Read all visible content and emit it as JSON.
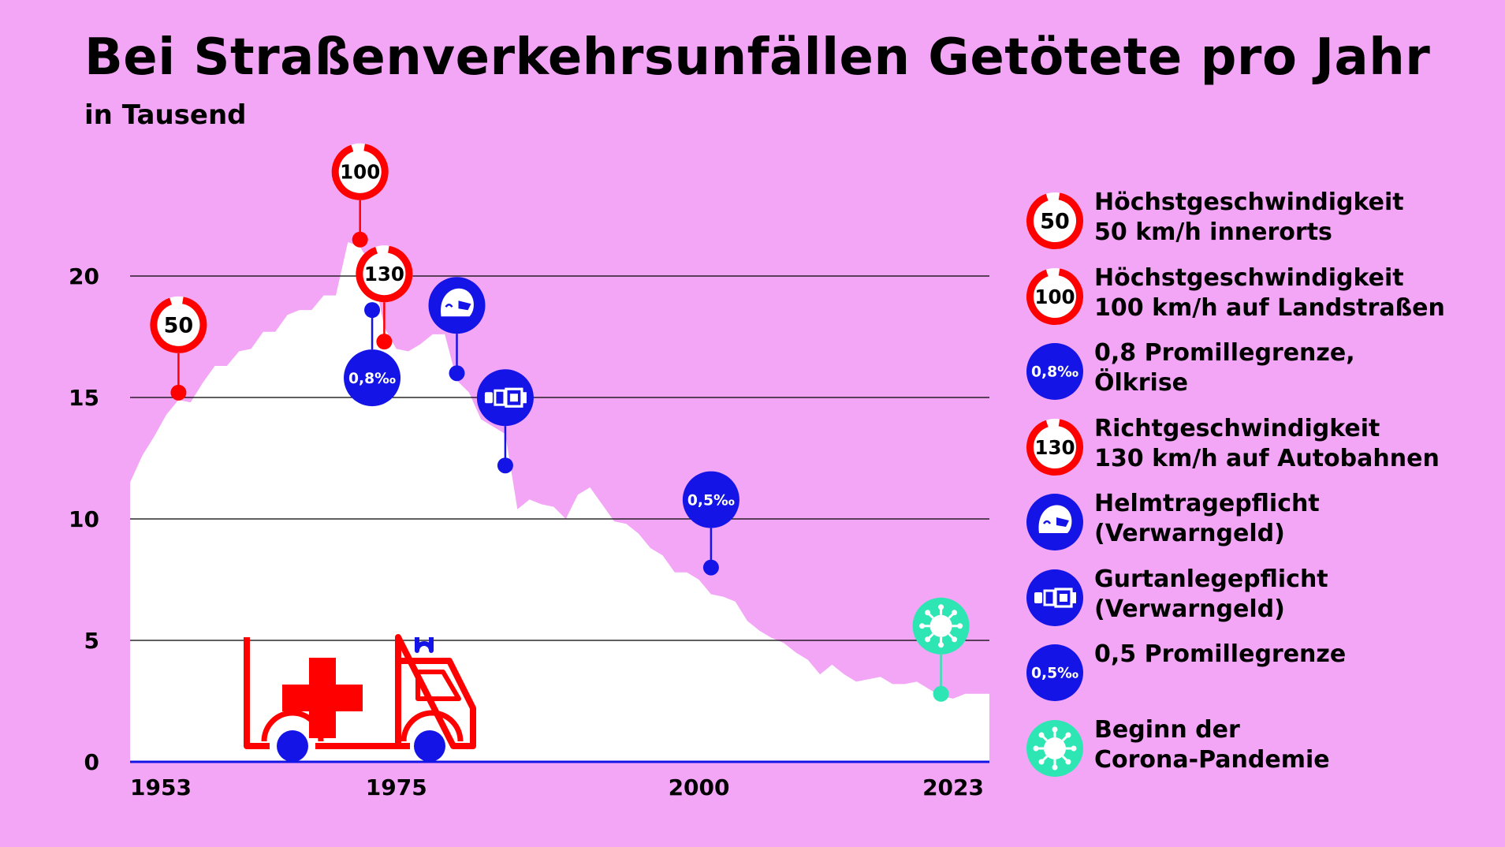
{
  "title": "Bei Straßenverkehrsunfällen Getötete pro Jahr",
  "subtitle": "in Tausend",
  "colors": {
    "background": "#f3a6f5",
    "area": "#ffffff",
    "red": "#ff0000",
    "blue": "#1414e6",
    "teal": "#2ee6b4",
    "baseline": "#1414e6",
    "grid": "#000000"
  },
  "chart_data": {
    "type": "area",
    "title": "Bei Straßenverkehrsunfällen Getötete pro Jahr",
    "subtitle": "in Tausend",
    "xlabel": "",
    "ylabel": "",
    "xlim": [
      1953,
      2024
    ],
    "ylim": [
      0,
      22
    ],
    "grid": true,
    "x_tick_labels": [
      "1953",
      "1975",
      "2000",
      "2023"
    ],
    "x_ticks": [
      1953,
      1975,
      2000,
      2023
    ],
    "y_ticks": [
      0,
      5,
      10,
      15,
      20
    ],
    "series": [
      {
        "x": [
          1953,
          1954,
          1955,
          1956,
          1957,
          1958,
          1959,
          1960,
          1961,
          1962,
          1963,
          1964,
          1965,
          1966,
          1967,
          1968,
          1969,
          1970,
          1971,
          1972,
          1973,
          1974,
          1975,
          1976,
          1977,
          1978,
          1979,
          1980,
          1981,
          1982,
          1983,
          1984,
          1985,
          1986,
          1987,
          1988,
          1989,
          1990,
          1991,
          1992,
          1993,
          1994,
          1995,
          1996,
          1997,
          1998,
          1999,
          2000,
          2001,
          2002,
          2003,
          2004,
          2005,
          2006,
          2007,
          2008,
          2009,
          2010,
          2011,
          2012,
          2013,
          2014,
          2015,
          2016,
          2017,
          2018,
          2019,
          2020,
          2021,
          2022,
          2023,
          2024
        ],
        "values": [
          11.5,
          12.6,
          13.4,
          14.3,
          14.9,
          14.8,
          15.6,
          16.3,
          16.3,
          16.9,
          17.0,
          17.7,
          17.7,
          18.4,
          18.6,
          18.6,
          19.2,
          19.2,
          21.4,
          21.2,
          20.4,
          17.9,
          17.0,
          16.9,
          17.2,
          17.6,
          17.6,
          15.7,
          15.2,
          14.1,
          13.8,
          13.5,
          10.4,
          10.8,
          10.6,
          10.5,
          10.0,
          11.0,
          11.3,
          10.6,
          9.9,
          9.8,
          9.4,
          8.8,
          8.5,
          7.8,
          7.8,
          7.5,
          6.9,
          6.8,
          6.6,
          5.8,
          5.4,
          5.1,
          4.9,
          4.5,
          4.2,
          3.6,
          4.0,
          3.6,
          3.3,
          3.4,
          3.5,
          3.2,
          3.2,
          3.3,
          3.0,
          2.7,
          2.6,
          2.8,
          2.8,
          2.8
        ]
      }
    ],
    "annotations": [
      {
        "id": "limit50",
        "x": 1957,
        "y": 15.2,
        "icon": "speed-limit-sign",
        "label": "50",
        "color": "red",
        "position": "above"
      },
      {
        "id": "limit100",
        "x": 1972,
        "y": 21.5,
        "icon": "speed-limit-sign",
        "label": "100",
        "color": "red",
        "position": "above"
      },
      {
        "id": "promille08",
        "x": 1973,
        "y": 18.6,
        "icon": "promille-badge",
        "label": "0,8‰",
        "color": "blue",
        "position": "below"
      },
      {
        "id": "limit130",
        "x": 1974,
        "y": 17.3,
        "icon": "speed-limit-sign",
        "label": "130",
        "color": "red",
        "position": "above"
      },
      {
        "id": "helmet",
        "x": 1980,
        "y": 16.0,
        "icon": "helmet-icon",
        "label": "",
        "color": "blue",
        "position": "above"
      },
      {
        "id": "belt",
        "x": 1984,
        "y": 12.2,
        "icon": "seatbelt-icon",
        "label": "",
        "color": "blue",
        "position": "above"
      },
      {
        "id": "promille05",
        "x": 2001,
        "y": 8.0,
        "icon": "promille-badge",
        "label": "0,5‰",
        "color": "blue",
        "position": "above"
      },
      {
        "id": "corona",
        "x": 2020,
        "y": 2.8,
        "icon": "virus-icon",
        "label": "",
        "color": "teal",
        "position": "above"
      }
    ]
  },
  "legend": [
    {
      "icon": "speed-limit-sign",
      "badge": "50",
      "color": "red",
      "lines": [
        "Höchstgeschwindigkeit",
        "50 km/h innerorts"
      ]
    },
    {
      "icon": "speed-limit-sign",
      "badge": "100",
      "color": "red",
      "lines": [
        "Höchstgeschwindigkeit",
        "100 km/h auf Landstraßen"
      ]
    },
    {
      "icon": "promille-badge",
      "badge": "0,8‰",
      "color": "blue",
      "lines": [
        "0,8 Promillegrenze,",
        "Ölkrise"
      ]
    },
    {
      "icon": "speed-limit-sign",
      "badge": "130",
      "color": "red",
      "lines": [
        "Richtgeschwindigkeit",
        "130 km/h auf Autobahnen"
      ]
    },
    {
      "icon": "helmet-icon",
      "badge": "",
      "color": "blue",
      "lines": [
        "Helmtragepflicht",
        "(Verwarngeld)"
      ]
    },
    {
      "icon": "seatbelt-icon",
      "badge": "",
      "color": "blue",
      "lines": [
        "Gurtanlegepflicht",
        "(Verwarngeld)"
      ]
    },
    {
      "icon": "promille-badge",
      "badge": "0,5‰",
      "color": "blue",
      "lines": [
        "0,5 Promillegrenze"
      ]
    },
    {
      "icon": "virus-icon",
      "badge": "",
      "color": "teal",
      "lines": [
        "Beginn der",
        "Corona-Pandemie"
      ]
    }
  ],
  "illustration": {
    "icon": "ambulance-icon",
    "color": "red",
    "wheel_color": "blue"
  }
}
